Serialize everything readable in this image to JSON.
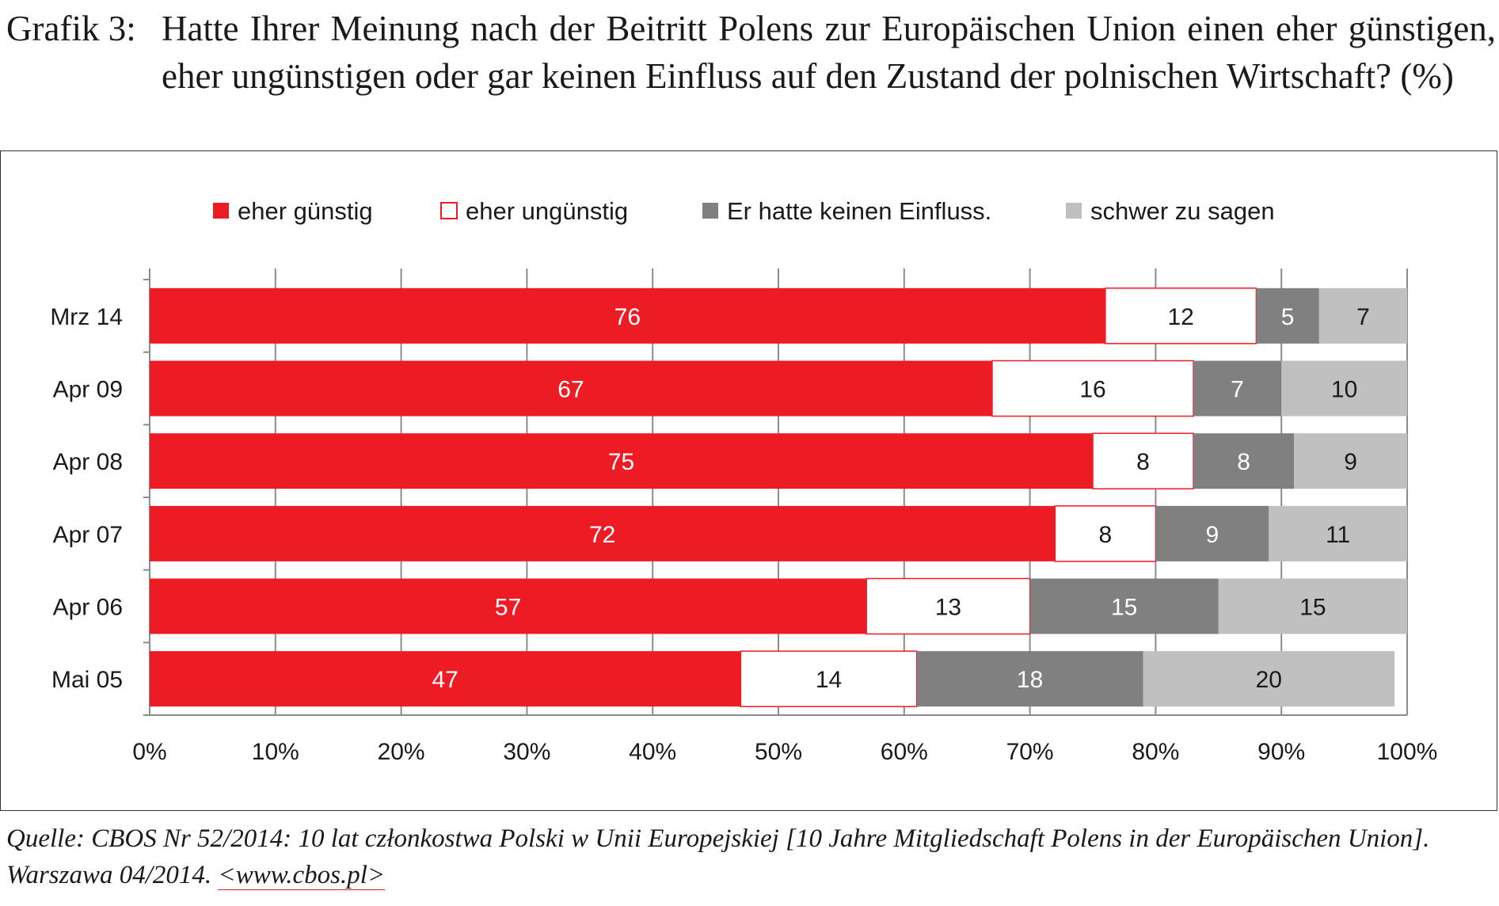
{
  "heading": {
    "number": "Grafik 3:",
    "text": "Hatte Ihrer Meinung nach der Beitritt Polens zur Europäischen Union einen eher günstigen, eher ungünstigen oder gar keinen Einfluss auf den Zustand der polnischen Wirtschaft? (%)"
  },
  "source": {
    "text": "Quelle: CBOS Nr 52/2014: 10 lat członkostwa Polski w Unii Europejskiej [10 Jahre Mitgliedschaft Polens in der Europäischen Union]. Warszawa 04/2014.",
    "link": "<www.cbos.pl>"
  },
  "chart_data": {
    "type": "bar",
    "orientation": "horizontal",
    "stacked": true,
    "categories": [
      "Mrz 14",
      "Apr 09",
      "Apr 08",
      "Apr 07",
      "Apr 06",
      "Mai 05"
    ],
    "series": [
      {
        "name": "eher günstig",
        "color": "#ed1c24",
        "values": [
          76,
          67,
          75,
          72,
          57,
          47
        ]
      },
      {
        "name": "eher ungünstig",
        "color": "#ffffff",
        "values": [
          12,
          16,
          8,
          8,
          13,
          14
        ]
      },
      {
        "name": "Er hatte keinen Einfluss.",
        "color": "#808080",
        "values": [
          5,
          7,
          8,
          9,
          15,
          18
        ]
      },
      {
        "name": "schwer zu sagen",
        "color": "#c0c0c0",
        "values": [
          7,
          10,
          9,
          11,
          15,
          20
        ]
      }
    ],
    "xlim": [
      0,
      100
    ],
    "x_ticks": [
      "0%",
      "10%",
      "20%",
      "30%",
      "40%",
      "50%",
      "60%",
      "70%",
      "80%",
      "90%",
      "100%"
    ],
    "legend_position": "top",
    "grid": true
  }
}
